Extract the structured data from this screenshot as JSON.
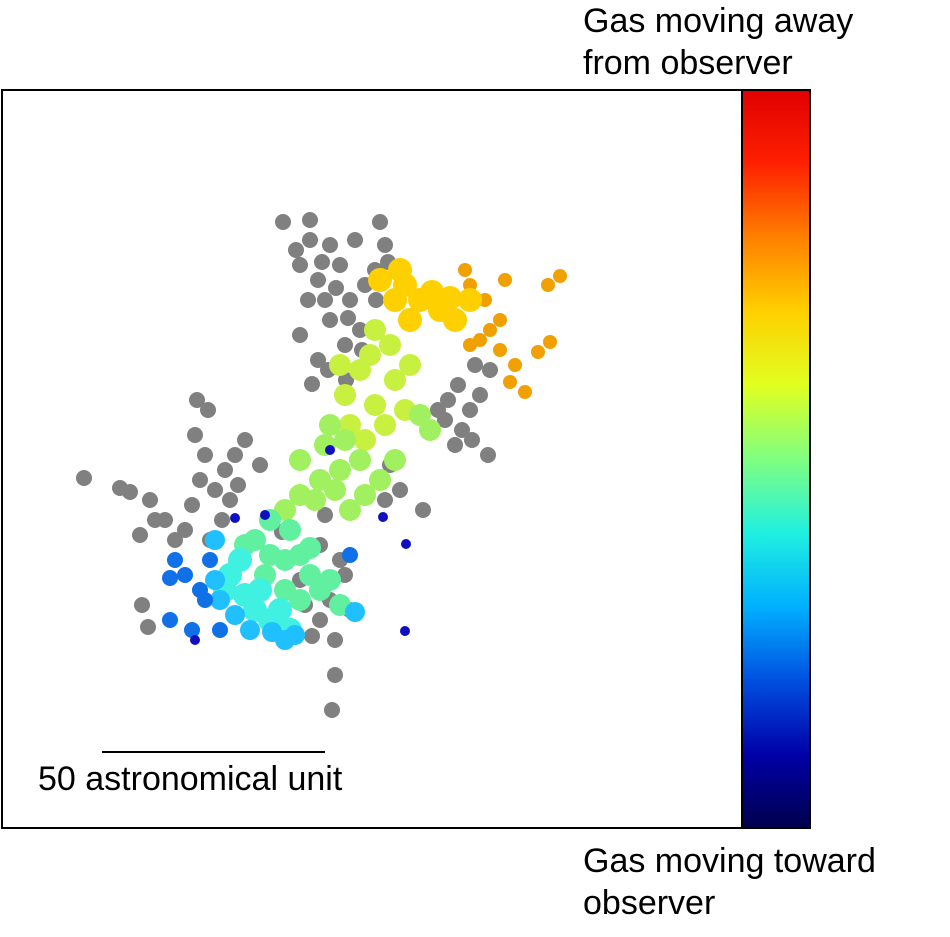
{
  "chart_data": {
    "type": "scatter",
    "title": "",
    "xlabel": "",
    "ylabel": "",
    "scale_bar": {
      "label": "50 astronomical unit"
    },
    "colorbar": {
      "top_label": [
        "Gas moving away",
        "from observer"
      ],
      "bottom_label": [
        "Gas moving toward",
        "observer"
      ],
      "colormap": [
        "#00004d",
        "#0000a8",
        "#0050e0",
        "#00b0ff",
        "#20f0e0",
        "#80ff80",
        "#e0ff20",
        "#ffd000",
        "#ff8000",
        "#ff2000",
        "#e00000"
      ]
    },
    "series": [
      {
        "color": "#808080",
        "points": [
          [
            283,
            222
          ],
          [
            310,
            220
          ],
          [
            330,
            245
          ],
          [
            300,
            265
          ],
          [
            318,
            280
          ],
          [
            308,
            300
          ],
          [
            330,
            320
          ],
          [
            345,
            345
          ],
          [
            355,
            240
          ],
          [
            380,
            222
          ],
          [
            385,
            245
          ],
          [
            375,
            270
          ],
          [
            350,
            300
          ],
          [
            360,
            330
          ],
          [
            325,
            300
          ],
          [
            340,
            265
          ],
          [
            310,
            240
          ],
          [
            296,
            250
          ],
          [
            322,
            262
          ],
          [
            336,
            288
          ],
          [
            348,
            318
          ],
          [
            362,
            350
          ],
          [
            318,
            360
          ],
          [
            300,
            335
          ],
          [
            312,
            384
          ],
          [
            328,
            370
          ],
          [
            346,
            380
          ],
          [
            365,
            285
          ],
          [
            376,
            300
          ],
          [
            388,
            262
          ],
          [
            448,
            400
          ],
          [
            458,
            385
          ],
          [
            470,
            410
          ],
          [
            445,
            420
          ],
          [
            462,
            430
          ],
          [
            480,
            395
          ],
          [
            490,
            370
          ],
          [
            475,
            365
          ],
          [
            438,
            410
          ],
          [
            455,
            445
          ],
          [
            488,
            455
          ],
          [
            472,
            440
          ],
          [
            84,
            478
          ],
          [
            120,
            488
          ],
          [
            150,
            500
          ],
          [
            165,
            520
          ],
          [
            140,
            535
          ],
          [
            175,
            540
          ],
          [
            192,
            505
          ],
          [
            200,
            480
          ],
          [
            215,
            490
          ],
          [
            225,
            470
          ],
          [
            235,
            455
          ],
          [
            245,
            440
          ],
          [
            260,
            465
          ],
          [
            230,
            500
          ],
          [
            205,
            455
          ],
          [
            208,
            410
          ],
          [
            197,
            400
          ],
          [
            222,
            520
          ],
          [
            238,
            485
          ],
          [
            195,
            435
          ],
          [
            185,
            530
          ],
          [
            155,
            520
          ],
          [
            130,
            492
          ],
          [
            210,
            540
          ],
          [
            325,
            515
          ],
          [
            320,
            545
          ],
          [
            340,
            560
          ],
          [
            345,
            575
          ],
          [
            330,
            600
          ],
          [
            350,
            610
          ],
          [
            320,
            620
          ],
          [
            305,
            605
          ],
          [
            312,
            636
          ],
          [
            335,
            640
          ],
          [
            335,
            675
          ],
          [
            332,
            710
          ],
          [
            300,
            580
          ],
          [
            400,
            490
          ],
          [
            385,
            500
          ],
          [
            423,
            510
          ],
          [
            390,
            465
          ],
          [
            142,
            605
          ],
          [
            148,
            627
          ],
          [
            270,
            520
          ],
          [
            282,
            532
          ]
        ]
      },
      {
        "color": "#f0a000",
        "points": [
          [
            470,
            285
          ],
          [
            485,
            300
          ],
          [
            500,
            320
          ],
          [
            490,
            330
          ],
          [
            480,
            340
          ],
          [
            470,
            345
          ],
          [
            505,
            280
          ],
          [
            560,
            276
          ],
          [
            548,
            285
          ],
          [
            550,
            342
          ],
          [
            538,
            352
          ],
          [
            525,
            392
          ],
          [
            515,
            365
          ],
          [
            510,
            382
          ],
          [
            500,
            350
          ],
          [
            465,
            270
          ]
        ]
      },
      {
        "color": "#ffd000",
        "points": [
          [
            380,
            280
          ],
          [
            405,
            285
          ],
          [
            420,
            300
          ],
          [
            440,
            310
          ],
          [
            455,
            320
          ],
          [
            470,
            300
          ],
          [
            432,
            292
          ],
          [
            395,
            300
          ],
          [
            410,
            320
          ],
          [
            450,
            298
          ],
          [
            400,
            270
          ]
        ]
      },
      {
        "color": "#c8f040",
        "points": [
          [
            375,
            330
          ],
          [
            390,
            345
          ],
          [
            410,
            365
          ],
          [
            395,
            380
          ],
          [
            360,
            370
          ],
          [
            345,
            395
          ],
          [
            375,
            405
          ],
          [
            405,
            410
          ],
          [
            385,
            425
          ],
          [
            365,
            440
          ],
          [
            350,
            425
          ],
          [
            370,
            355
          ],
          [
            340,
            365
          ]
        ]
      },
      {
        "color": "#a0f060",
        "points": [
          [
            330,
            425
          ],
          [
            345,
            440
          ],
          [
            360,
            460
          ],
          [
            340,
            470
          ],
          [
            320,
            480
          ],
          [
            300,
            495
          ],
          [
            285,
            510
          ],
          [
            300,
            460
          ],
          [
            315,
            500
          ],
          [
            335,
            490
          ],
          [
            350,
            510
          ],
          [
            395,
            460
          ],
          [
            380,
            480
          ],
          [
            430,
            430
          ],
          [
            420,
            415
          ],
          [
            325,
            445
          ],
          [
            365,
            495
          ]
        ]
      },
      {
        "color": "#60f0a0",
        "points": [
          [
            255,
            540
          ],
          [
            270,
            555
          ],
          [
            285,
            560
          ],
          [
            300,
            555
          ],
          [
            310,
            548
          ],
          [
            265,
            575
          ],
          [
            285,
            590
          ],
          [
            300,
            600
          ],
          [
            320,
            590
          ],
          [
            340,
            605
          ],
          [
            330,
            580
          ],
          [
            270,
            520
          ],
          [
            245,
            545
          ],
          [
            290,
            530
          ],
          [
            310,
            575
          ]
        ]
      },
      {
        "color": "#40f0e0",
        "points": [
          [
            230,
            575
          ],
          [
            245,
            595
          ],
          [
            255,
            610
          ],
          [
            270,
            620
          ],
          [
            290,
            630
          ],
          [
            280,
            610
          ],
          [
            240,
            560
          ],
          [
            225,
            590
          ],
          [
            260,
            590
          ]
        ]
      },
      {
        "color": "#20c0ff",
        "points": [
          [
            215,
            580
          ],
          [
            220,
            600
          ],
          [
            235,
            615
          ],
          [
            250,
            630
          ],
          [
            272,
            632
          ],
          [
            295,
            635
          ],
          [
            215,
            540
          ],
          [
            355,
            612
          ],
          [
            285,
            640
          ]
        ]
      },
      {
        "color": "#1070e8",
        "points": [
          [
            170,
            578
          ],
          [
            185,
            575
          ],
          [
            200,
            590
          ],
          [
            210,
            560
          ],
          [
            170,
            620
          ],
          [
            192,
            630
          ],
          [
            220,
            630
          ],
          [
            205,
            600
          ],
          [
            175,
            560
          ],
          [
            350,
            555
          ]
        ]
      },
      {
        "color": "#1010c0",
        "points": [
          [
            235,
            518
          ],
          [
            265,
            515
          ],
          [
            383,
            517
          ],
          [
            406,
            544
          ],
          [
            405,
            631
          ],
          [
            195,
            640
          ],
          [
            330,
            450
          ]
        ]
      }
    ]
  }
}
